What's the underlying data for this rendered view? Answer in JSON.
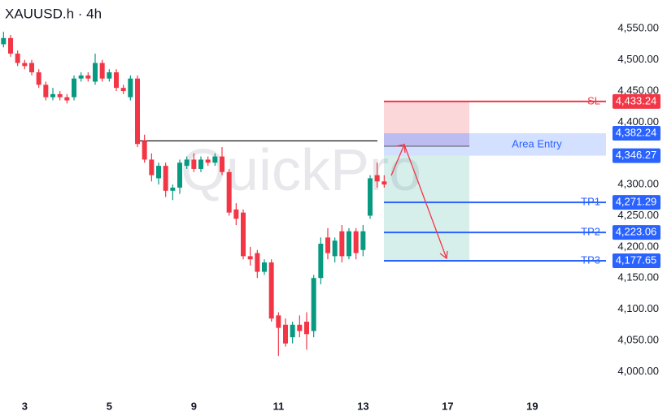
{
  "chart_data": {
    "type": "candlestick",
    "title": "XAUUSD.h · 4h",
    "watermark": "QuickPro",
    "up_color": "#089981",
    "down_color": "#f23645",
    "x": [
      0,
      1,
      2,
      3,
      4,
      5,
      6,
      7,
      8,
      9,
      10,
      11,
      12,
      13,
      14,
      15,
      16,
      17,
      18,
      19,
      20,
      21,
      22,
      23,
      24,
      25,
      26,
      27,
      28,
      29,
      30,
      31,
      32,
      33,
      34,
      35,
      36,
      37,
      38,
      39,
      40,
      41,
      42,
      43,
      44,
      45,
      46,
      47,
      48,
      49,
      50,
      51,
      52,
      53,
      54
    ],
    "open": [
      4525,
      4535,
      4510,
      4495,
      4495,
      4480,
      4460,
      4440,
      4445,
      4440,
      4440,
      4470,
      4475,
      4465,
      4495,
      4470,
      4480,
      4455,
      4440,
      4470,
      4370,
      4340,
      4310,
      4330,
      4290,
      4295,
      4330,
      4340,
      4325,
      4340,
      4335,
      4345,
      4320,
      4260,
      4255,
      4185,
      4190,
      4160,
      4175,
      4090,
      4075,
      4055,
      4075,
      4080,
      4065,
      4150,
      4215,
      4185,
      4225,
      4185,
      4225,
      4195,
      4250,
      4315,
      4305
    ],
    "high": [
      4545,
      4540,
      4515,
      4500,
      4500,
      4485,
      4465,
      4455,
      4450,
      4445,
      4475,
      4480,
      4480,
      4510,
      4500,
      4485,
      4485,
      4460,
      4475,
      4475,
      4380,
      4350,
      4335,
      4335,
      4300,
      4340,
      4345,
      4350,
      4345,
      4345,
      4350,
      4360,
      4325,
      4270,
      4260,
      4200,
      4195,
      4180,
      4180,
      4095,
      4085,
      4080,
      4090,
      4095,
      4155,
      4215,
      4230,
      4215,
      4235,
      4230,
      4230,
      4235,
      4315,
      4335,
      4315
    ],
    "low": [
      4520,
      4505,
      4490,
      4485,
      4475,
      4455,
      4435,
      4435,
      4435,
      4430,
      4435,
      4465,
      4465,
      4460,
      4465,
      4465,
      4450,
      4445,
      4435,
      4360,
      4335,
      4305,
      4300,
      4280,
      4275,
      4285,
      4325,
      4320,
      4320,
      4330,
      4330,
      4315,
      4250,
      4235,
      4180,
      4170,
      4150,
      4155,
      4080,
      4025,
      4040,
      4045,
      4055,
      4035,
      4055,
      4140,
      4180,
      4175,
      4175,
      4180,
      4180,
      4185,
      4245,
      4295,
      4295
    ],
    "close": [
      4535,
      4510,
      4495,
      4490,
      4480,
      4460,
      4440,
      4445,
      4440,
      4435,
      4470,
      4475,
      4470,
      4495,
      4470,
      4480,
      4455,
      4450,
      4470,
      4365,
      4340,
      4315,
      4330,
      4290,
      4295,
      4335,
      4340,
      4325,
      4340,
      4335,
      4345,
      4320,
      4255,
      4245,
      4185,
      4180,
      4160,
      4175,
      4085,
      4070,
      4045,
      4075,
      4065,
      4060,
      4150,
      4205,
      4190,
      4210,
      4185,
      4225,
      4190,
      4225,
      4310,
      4305,
      4300
    ],
    "xlim": [
      -0.5,
      85
    ],
    "xticks": [
      {
        "value": 3,
        "label": "3"
      },
      {
        "value": 15,
        "label": "5"
      },
      {
        "value": 27,
        "label": "9"
      },
      {
        "value": 39,
        "label": "11"
      },
      {
        "value": 51,
        "label": "13"
      },
      {
        "value": 63,
        "label": "17"
      },
      {
        "value": 75,
        "label": "19"
      }
    ],
    "ylim": [
      3990,
      4596
    ],
    "yticks": [
      {
        "value": 4000,
        "label": "4,000.00"
      },
      {
        "value": 4050,
        "label": "4,050.00"
      },
      {
        "value": 4100,
        "label": "4,100.00"
      },
      {
        "value": 4150,
        "label": "4,150.00"
      },
      {
        "value": 4200,
        "label": "4,200.00"
      },
      {
        "value": 4250,
        "label": "4,250.00"
      },
      {
        "value": 4300,
        "label": "4,300.00"
      },
      {
        "value": 4350,
        "label": "4,350.00"
      },
      {
        "value": 4400,
        "label": "4,400.00"
      },
      {
        "value": 4450,
        "label": "4,450.00"
      },
      {
        "value": 4500,
        "label": "4,500.00"
      },
      {
        "value": 4550,
        "label": "4,550.00"
      }
    ],
    "resistance": 4370,
    "entry": {
      "label": "Area Entry",
      "high": 4382.24,
      "high_label": "4,382.24",
      "low": 4346.27,
      "low_label": "4,346.27"
    },
    "levels": [
      {
        "name": "SL",
        "value": 4433.24,
        "value_label": "4,433.24",
        "color": "#f23645"
      },
      {
        "name": "TP1",
        "value": 4271.29,
        "value_label": "4,271.29",
        "color": "#2962ff"
      },
      {
        "name": "TP2",
        "value": 4223.06,
        "value_label": "4,223.06",
        "color": "#2962ff"
      },
      {
        "name": "TP3",
        "value": 4177.65,
        "value_label": "4,177.65",
        "color": "#2962ff"
      }
    ]
  }
}
